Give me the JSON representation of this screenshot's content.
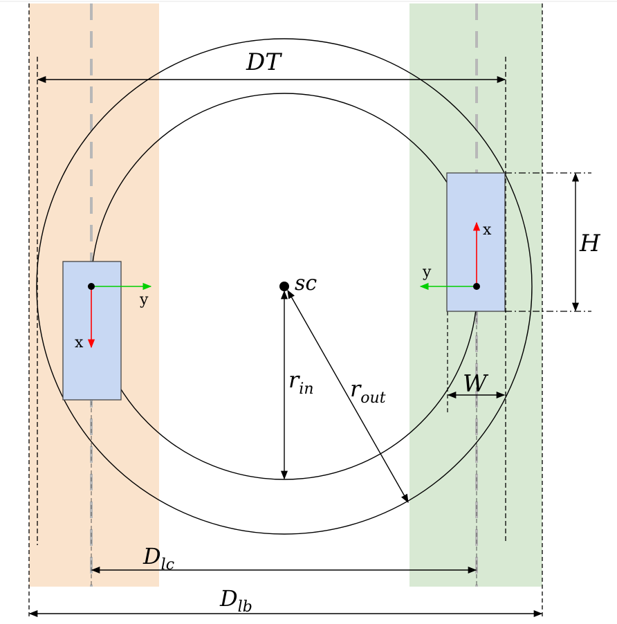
{
  "labels": {
    "dt": "DT",
    "sc": "sc",
    "h": "H",
    "w": "W",
    "r_in_main": "r",
    "r_in_sub": "in",
    "r_out_main": "r",
    "r_out_sub": "out",
    "d_lc_main": "D",
    "d_lc_sub": "lc",
    "d_lb_main": "D",
    "d_lb_sub": "lb",
    "left_x": "x",
    "left_y": "y",
    "right_x": "x",
    "right_y": "y"
  },
  "colors": {
    "left_band": "#fae3cc",
    "right_band": "#d8e9d3",
    "vehicle_fill": "#c8d8f3",
    "x_axis": "#ff0000",
    "y_axis": "#00d000",
    "lane_center": "#b8b8b8"
  }
}
